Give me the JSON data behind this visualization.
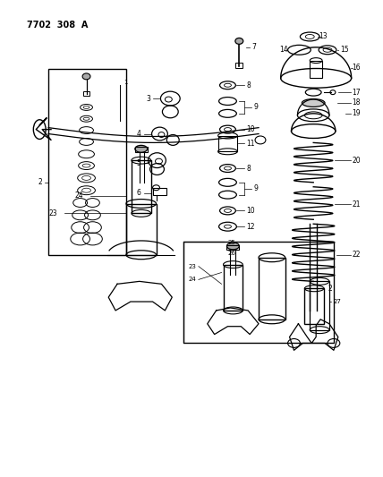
{
  "title": "7702 308 A",
  "bg_color": "#ffffff",
  "line_color": "#000000",
  "fig_width": 4.28,
  "fig_height": 5.33,
  "dpi": 100
}
